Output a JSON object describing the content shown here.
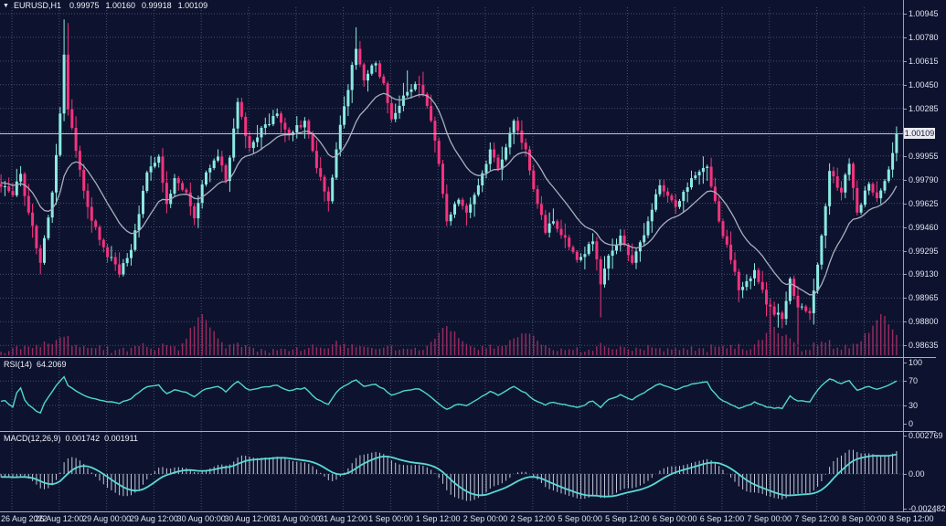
{
  "header": {
    "dropdown_icon": "▼",
    "symbol": "EURUSD,H1",
    "open": "0.99975",
    "high": "1.00160",
    "low": "0.99918",
    "close": "1.00109"
  },
  "colors": {
    "bg": "#0D132E",
    "grid": "#475072",
    "bull": "#8BEAE2",
    "bear": "#F5327E",
    "volume": "#9A2B61",
    "ma": "#A9AEBE",
    "price_line": "#C0C4D2",
    "price_label_bg": "#E9EAF2",
    "price_label_text": "#10163A",
    "axis_text": "#DFE3F2",
    "rsi_line": "#4FD6CE",
    "macd_hist": "#C3C7D6",
    "macd_signal": "#5BD9D6",
    "separator": "#A9ADC2"
  },
  "price_axis": {
    "labels": [
      "1.00945",
      "1.00780",
      "1.00615",
      "1.00450",
      "1.00285",
      "0.99955",
      "0.99790",
      "0.99625",
      "0.99460",
      "0.99295",
      "0.99130",
      "0.98965",
      "0.98800",
      "0.98635"
    ],
    "current": "1.00109"
  },
  "time_axis": {
    "labels": [
      "26 Aug 2022",
      "26 Aug 12:00",
      "29 Aug 00:00",
      "29 Aug 12:00",
      "30 Aug 00:00",
      "30 Aug 12:00",
      "31 Aug 00:00",
      "31 Aug 12:00",
      "1 Sep 00:00",
      "1 Sep 12:00",
      "2 Sep 00:00",
      "2 Sep 12:00",
      "5 Sep 00:00",
      "5 Sep 12:00",
      "6 Sep 00:00",
      "6 Sep 12:00",
      "7 Sep 00:00",
      "7 Sep 12:00",
      "8 Sep 00:00",
      "8 Sep 12:00"
    ]
  },
  "rsi_panel": {
    "label": "RSI(14)",
    "value": "64.2069",
    "axis_labels": [
      "100",
      "70",
      "30",
      "0"
    ],
    "levels": [
      70,
      30
    ]
  },
  "macd_panel": {
    "label": "MACD(12,26,9)",
    "value_main": "0.001742",
    "value_signal": "0.001911",
    "axis_labels": [
      "0.002769",
      "0.00",
      "-0.002482"
    ]
  },
  "chart_data": {
    "type": "candlestick",
    "symbol": "EURUSD",
    "timeframe": "H1",
    "ohlc_last": {
      "open": 0.99975,
      "high": 1.0016,
      "low": 0.99918,
      "close": 1.00109
    },
    "ylim": [
      0.98635,
      1.00945
    ],
    "price_step": 0.00165,
    "candle_count": 228,
    "price_anchors": [
      [
        0,
        0.9974
      ],
      [
        3,
        0.9968
      ],
      [
        5,
        0.9983
      ],
      [
        7,
        0.9956
      ],
      [
        10,
        0.9921
      ],
      [
        13,
        0.997
      ],
      [
        15,
        1.0025
      ],
      [
        16,
        1.0066
      ],
      [
        17,
        1.0028
      ],
      [
        19,
        0.9999
      ],
      [
        22,
        0.996
      ],
      [
        25,
        0.9937
      ],
      [
        30,
        0.9913
      ],
      [
        33,
        0.993
      ],
      [
        37,
        0.9984
      ],
      [
        40,
        0.9995
      ],
      [
        42,
        0.9962
      ],
      [
        44,
        0.998
      ],
      [
        47,
        0.997
      ],
      [
        49,
        0.9952
      ],
      [
        52,
        0.9984
      ],
      [
        55,
        0.9995
      ],
      [
        57,
        0.9978
      ],
      [
        60,
        1.0033
      ],
      [
        63,
        1.0001
      ],
      [
        66,
        1.0015
      ],
      [
        70,
        1.0025
      ],
      [
        73,
        1.001
      ],
      [
        77,
        1.002
      ],
      [
        80,
        0.9987
      ],
      [
        83,
        0.9964
      ],
      [
        85,
        1.0
      ],
      [
        87,
        1.003
      ],
      [
        90,
        1.007
      ],
      [
        92,
        1.0048
      ],
      [
        95,
        1.006
      ],
      [
        97,
        1.0046
      ],
      [
        99,
        1.0021
      ],
      [
        103,
        1.004
      ],
      [
        106,
        1.0045
      ],
      [
        109,
        1.002
      ],
      [
        111,
        0.999
      ],
      [
        113,
        0.995
      ],
      [
        116,
        0.9965
      ],
      [
        118,
        0.9956
      ],
      [
        121,
        0.9975
      ],
      [
        124,
        1.0
      ],
      [
        126,
        0.9986
      ],
      [
        130,
        1.002
      ],
      [
        133,
        1.0
      ],
      [
        136,
        0.9962
      ],
      [
        138,
        0.9942
      ],
      [
        140,
        0.995
      ],
      [
        144,
        0.9932
      ],
      [
        146,
        0.9923
      ],
      [
        150,
        0.9936
      ],
      [
        152,
        0.9906
      ],
      [
        154,
        0.9926
      ],
      [
        157,
        0.994
      ],
      [
        160,
        0.9921
      ],
      [
        164,
        0.995
      ],
      [
        167,
        0.9975
      ],
      [
        171,
        0.996
      ],
      [
        175,
        0.998
      ],
      [
        179,
        0.9988
      ],
      [
        182,
        0.995
      ],
      [
        185,
        0.9923
      ],
      [
        187,
        0.9902
      ],
      [
        191,
        0.9916
      ],
      [
        194,
        0.9892
      ],
      [
        198,
        0.9882
      ],
      [
        200,
        0.991
      ],
      [
        202,
        0.989
      ],
      [
        205,
        0.9886
      ],
      [
        208,
        0.994
      ],
      [
        210,
        0.9985
      ],
      [
        213,
        0.997
      ],
      [
        215,
        0.999
      ],
      [
        217,
        0.9956
      ],
      [
        220,
        0.9976
      ],
      [
        222,
        0.9966
      ],
      [
        224,
        0.9978
      ],
      [
        226,
        0.99975
      ],
      [
        227,
        1.00109
      ]
    ],
    "wick_overrides": [
      [
        16,
        1.00905,
        null
      ],
      [
        17,
        1.0088,
        null
      ],
      [
        90,
        1.0085,
        null
      ],
      [
        103,
        1.0055,
        null
      ],
      [
        152,
        null,
        0.9883
      ],
      [
        195,
        null,
        0.9872
      ],
      [
        202,
        null,
        0.9864
      ],
      [
        227,
        1.0016,
        0.99918
      ]
    ],
    "volume_spikes": [
      [
        51,
        38
      ],
      [
        114,
        20
      ],
      [
        133,
        16
      ],
      [
        196,
        24
      ],
      [
        223,
        40
      ]
    ],
    "overlays": [
      {
        "name": "MA",
        "type": "ema",
        "period": 16
      }
    ],
    "indicators": [
      {
        "name": "RSI",
        "period": 14,
        "last_value": 64.2069,
        "scale": [
          0,
          100
        ],
        "levels": [
          70,
          30
        ]
      },
      {
        "name": "MACD",
        "fast": 12,
        "slow": 26,
        "signal": 9,
        "last_main": 0.001742,
        "last_signal": 0.001911,
        "axis_max": 0.002769,
        "axis_min": -0.002482
      }
    ]
  }
}
